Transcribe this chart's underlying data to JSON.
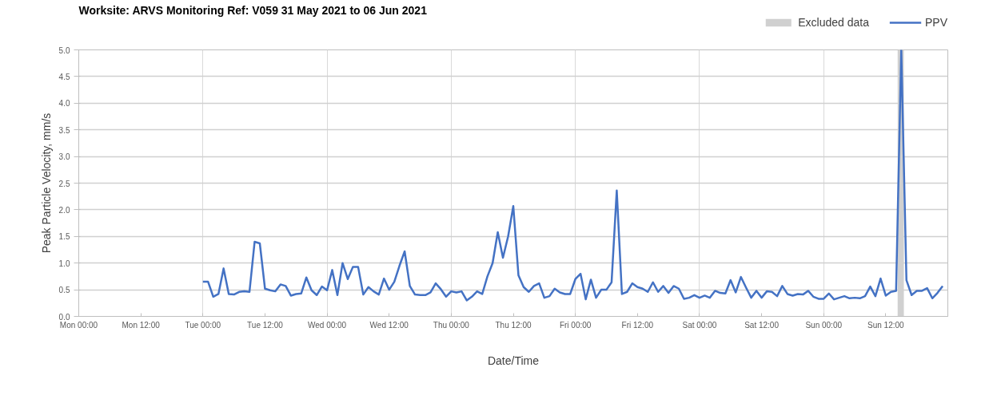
{
  "chart_data": {
    "type": "line",
    "title": "Worksite: ARVS    Monitoring Ref: V059     31 May 2021 to 06 Jun 2021",
    "xlabel": "Date/Time",
    "ylabel": "Peak Particle Velocity, mm/s",
    "x": [
      "2021-06-01T00:00",
      "2021-06-01T01:00",
      "2021-06-01T02:00",
      "2021-06-01T03:00",
      "2021-06-01T04:00",
      "2021-06-01T05:00",
      "2021-06-01T06:00",
      "2021-06-01T07:00",
      "2021-06-01T08:00",
      "2021-06-01T09:00",
      "2021-06-01T10:00",
      "2021-06-01T11:00",
      "2021-06-01T12:00",
      "2021-06-01T13:00",
      "2021-06-01T14:00",
      "2021-06-01T15:00",
      "2021-06-01T16:00",
      "2021-06-01T17:00",
      "2021-06-01T18:00",
      "2021-06-01T19:00",
      "2021-06-01T20:00",
      "2021-06-01T21:00",
      "2021-06-01T22:00",
      "2021-06-01T23:00",
      "2021-06-02T00:00",
      "2021-06-02T01:00",
      "2021-06-02T02:00",
      "2021-06-02T03:00",
      "2021-06-02T04:00",
      "2021-06-02T05:00",
      "2021-06-02T06:00",
      "2021-06-02T07:00",
      "2021-06-02T08:00",
      "2021-06-02T09:00",
      "2021-06-02T10:00",
      "2021-06-02T11:00",
      "2021-06-02T12:00",
      "2021-06-02T13:00",
      "2021-06-02T14:00",
      "2021-06-02T15:00",
      "2021-06-02T16:00",
      "2021-06-02T17:00",
      "2021-06-02T18:00",
      "2021-06-02T19:00",
      "2021-06-02T20:00",
      "2021-06-02T21:00",
      "2021-06-02T22:00",
      "2021-06-02T23:00",
      "2021-06-03T00:00",
      "2021-06-03T01:00",
      "2021-06-03T02:00",
      "2021-06-03T03:00",
      "2021-06-03T04:00",
      "2021-06-03T05:00",
      "2021-06-03T06:00",
      "2021-06-03T07:00",
      "2021-06-03T08:00",
      "2021-06-03T09:00",
      "2021-06-03T10:00",
      "2021-06-03T11:00",
      "2021-06-03T12:00",
      "2021-06-03T13:00",
      "2021-06-03T14:00",
      "2021-06-03T15:00",
      "2021-06-03T16:00",
      "2021-06-03T17:00",
      "2021-06-03T18:00",
      "2021-06-03T19:00",
      "2021-06-03T20:00",
      "2021-06-03T21:00",
      "2021-06-03T22:00",
      "2021-06-03T23:00",
      "2021-06-04T00:00",
      "2021-06-04T01:00",
      "2021-06-04T02:00",
      "2021-06-04T03:00",
      "2021-06-04T04:00",
      "2021-06-04T05:00",
      "2021-06-04T06:00",
      "2021-06-04T07:00",
      "2021-06-04T08:00",
      "2021-06-04T09:00",
      "2021-06-04T10:00",
      "2021-06-04T11:00",
      "2021-06-04T12:00",
      "2021-06-04T13:00",
      "2021-06-04T14:00",
      "2021-06-04T15:00",
      "2021-06-04T16:00",
      "2021-06-04T17:00",
      "2021-06-04T18:00",
      "2021-06-04T19:00",
      "2021-06-04T20:00",
      "2021-06-04T21:00",
      "2021-06-04T22:00",
      "2021-06-04T23:00",
      "2021-06-05T00:00",
      "2021-06-05T01:00",
      "2021-06-05T02:00",
      "2021-06-05T03:00",
      "2021-06-05T04:00",
      "2021-06-05T05:00",
      "2021-06-05T06:00",
      "2021-06-05T07:00",
      "2021-06-05T08:00",
      "2021-06-05T09:00",
      "2021-06-05T10:00",
      "2021-06-05T11:00",
      "2021-06-05T12:00",
      "2021-06-05T13:00",
      "2021-06-05T14:00",
      "2021-06-05T15:00",
      "2021-06-05T16:00",
      "2021-06-05T17:00",
      "2021-06-05T18:00",
      "2021-06-05T19:00",
      "2021-06-05T20:00",
      "2021-06-05T21:00",
      "2021-06-05T22:00",
      "2021-06-05T23:00",
      "2021-06-06T00:00",
      "2021-06-06T01:00",
      "2021-06-06T02:00",
      "2021-06-06T03:00",
      "2021-06-06T04:00",
      "2021-06-06T05:00",
      "2021-06-06T06:00",
      "2021-06-06T07:00",
      "2021-06-06T08:00",
      "2021-06-06T09:00",
      "2021-06-06T10:00",
      "2021-06-06T11:00",
      "2021-06-06T12:00",
      "2021-06-06T13:00",
      "2021-06-06T14:00",
      "2021-06-06T15:00",
      "2021-06-06T16:00",
      "2021-06-06T17:00",
      "2021-06-06T18:00",
      "2021-06-06T19:00",
      "2021-06-06T20:00",
      "2021-06-06T21:00",
      "2021-06-06T22:00",
      "2021-06-06T23:00"
    ],
    "series": [
      {
        "name": "PPV",
        "color": "#4472c4",
        "values": [
          0.65,
          0.65,
          0.37,
          0.42,
          0.9,
          0.42,
          0.41,
          0.46,
          0.47,
          0.46,
          1.4,
          1.37,
          0.52,
          0.49,
          0.47,
          0.6,
          0.57,
          0.39,
          0.42,
          0.43,
          0.73,
          0.49,
          0.4,
          0.56,
          0.49,
          0.87,
          0.4,
          1.0,
          0.7,
          0.93,
          0.93,
          0.41,
          0.55,
          0.47,
          0.41,
          0.71,
          0.5,
          0.65,
          0.95,
          1.22,
          0.57,
          0.41,
          0.4,
          0.4,
          0.45,
          0.62,
          0.51,
          0.37,
          0.47,
          0.45,
          0.47,
          0.3,
          0.37,
          0.47,
          0.42,
          0.75,
          1.0,
          1.58,
          1.1,
          1.5,
          2.07,
          0.77,
          0.55,
          0.46,
          0.57,
          0.62,
          0.35,
          0.38,
          0.52,
          0.45,
          0.42,
          0.42,
          0.7,
          0.8,
          0.32,
          0.69,
          0.35,
          0.5,
          0.5,
          0.64,
          2.36,
          0.42,
          0.46,
          0.62,
          0.55,
          0.52,
          0.46,
          0.64,
          0.46,
          0.57,
          0.44,
          0.57,
          0.52,
          0.33,
          0.35,
          0.4,
          0.35,
          0.39,
          0.35,
          0.48,
          0.44,
          0.43,
          0.68,
          0.45,
          0.74,
          0.54,
          0.35,
          0.48,
          0.35,
          0.47,
          0.46,
          0.38,
          0.57,
          0.42,
          0.39,
          0.42,
          0.41,
          0.48,
          0.37,
          0.33,
          0.33,
          0.43,
          0.32,
          0.35,
          0.38,
          0.34,
          0.35,
          0.34,
          0.38,
          0.56,
          0.38,
          0.71,
          0.39,
          0.46,
          0.48,
          5.0,
          0.68,
          0.4,
          0.48,
          0.48,
          0.53,
          0.34,
          0.44,
          0.57
        ]
      }
    ],
    "bands": [
      {
        "axis": "x",
        "from": "2021-06-06T14:18",
        "to": "2021-06-06T15:30",
        "label": "Excluded data",
        "color": "#d0d0d0"
      }
    ],
    "xlim": [
      "2021-05-31T00:00",
      "2021-06-07T00:00"
    ],
    "xticks": [
      {
        "value": "2021-05-31T00:00",
        "label": "Mon 00:00"
      },
      {
        "value": "2021-05-31T12:00",
        "label": "Mon 12:00"
      },
      {
        "value": "2021-06-01T00:00",
        "label": "Tue 00:00"
      },
      {
        "value": "2021-06-01T12:00",
        "label": "Tue 12:00"
      },
      {
        "value": "2021-06-02T00:00",
        "label": "Wed 00:00"
      },
      {
        "value": "2021-06-02T12:00",
        "label": "Wed 12:00"
      },
      {
        "value": "2021-06-03T00:00",
        "label": "Thu 00:00"
      },
      {
        "value": "2021-06-03T12:00",
        "label": "Thu 12:00"
      },
      {
        "value": "2021-06-04T00:00",
        "label": "Fri 00:00"
      },
      {
        "value": "2021-06-04T12:00",
        "label": "Fri 12:00"
      },
      {
        "value": "2021-06-05T00:00",
        "label": "Sat 00:00"
      },
      {
        "value": "2021-06-05T12:00",
        "label": "Sat 12:00"
      },
      {
        "value": "2021-06-06T00:00",
        "label": "Sun 00:00"
      },
      {
        "value": "2021-06-06T12:00",
        "label": "Sun 12:00"
      },
      {
        "value": "2021-06-07T00:00",
        "label": null
      }
    ],
    "ylim": [
      0,
      5
    ],
    "yticks": [
      {
        "value": 0,
        "label": "0.0"
      },
      {
        "value": 0.5,
        "label": "0.5"
      },
      {
        "value": 1,
        "label": "1.0"
      },
      {
        "value": 1.5,
        "label": "1.5"
      },
      {
        "value": 2,
        "label": "2.0"
      },
      {
        "value": 2.5,
        "label": "2.5"
      },
      {
        "value": 3,
        "label": "3.0"
      },
      {
        "value": 3.5,
        "label": "3.5"
      },
      {
        "value": 4,
        "label": "4.0"
      },
      {
        "value": 4.5,
        "label": "4.5"
      },
      {
        "value": 5,
        "label": "5.0"
      }
    ],
    "grid": true,
    "legend": "top right",
    "marker": "none",
    "line_style": "solid"
  }
}
